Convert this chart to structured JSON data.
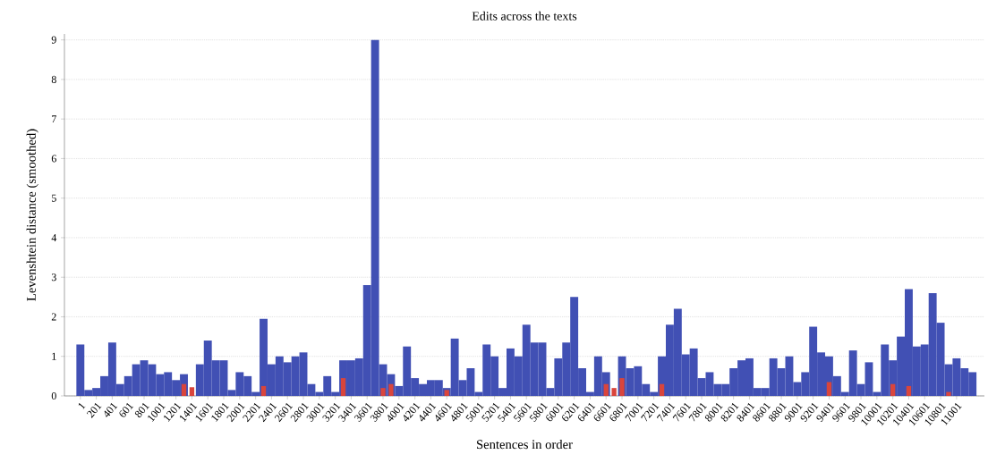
{
  "chart_data": {
    "type": "bar",
    "title": "Edits across the texts",
    "xlabel": "Sentences in order",
    "ylabel": "Levenshtein distance (smoothed)",
    "ylim": [
      0,
      9.15
    ],
    "yticks": [
      0,
      1,
      2,
      3,
      4,
      5,
      6,
      7,
      8,
      9
    ],
    "grid": "y",
    "categories": [
      "1",
      null,
      "201",
      null,
      "401",
      null,
      "601",
      null,
      "801",
      null,
      "1001",
      null,
      "1201",
      null,
      "1401",
      null,
      "1601",
      null,
      "1801",
      null,
      "2001",
      null,
      "2201",
      null,
      "2401",
      null,
      "2601",
      null,
      "2801",
      null,
      "3001",
      null,
      "3201",
      null,
      "3401",
      null,
      "3601",
      null,
      "3801",
      null,
      "4001",
      null,
      "4201",
      null,
      "4401",
      null,
      "4601",
      null,
      "4801",
      null,
      "5001",
      null,
      "5201",
      null,
      "5401",
      null,
      "5601",
      null,
      "5801",
      null,
      "6001",
      null,
      "6201",
      null,
      "6401",
      null,
      "6601",
      null,
      "6801",
      null,
      "7001",
      null,
      "7201",
      null,
      "7401",
      null,
      "7601",
      null,
      "7801",
      null,
      "8001",
      null,
      "8201",
      null,
      "8401",
      null,
      "8601",
      null,
      "8801",
      null,
      "9001",
      null,
      "9201",
      null,
      "9401",
      null,
      "9601",
      null,
      "9801",
      null,
      "10001",
      null,
      "10201",
      null,
      "10401",
      null,
      "10601",
      null,
      "10801",
      null,
      "11001",
      null,
      null
    ],
    "series": [
      {
        "color": "#4150b4",
        "values": [
          1.3,
          0.15,
          0.2,
          0.5,
          1.35,
          0.3,
          0.5,
          0.8,
          0.9,
          0.8,
          0.55,
          0.6,
          0.4,
          0.55,
          null,
          0.8,
          1.4,
          0.9,
          0.9,
          0.15,
          0.6,
          0.5,
          0.1,
          1.95,
          0.8,
          1.0,
          0.85,
          1.0,
          1.1,
          0.3,
          0.1,
          0.5,
          0.1,
          0.9,
          0.9,
          0.95,
          2.8,
          9.0,
          0.8,
          0.55,
          0.25,
          1.25,
          0.45,
          0.3,
          0.4,
          0.4,
          0.2,
          1.45,
          0.4,
          0.7,
          0.1,
          1.3,
          1.0,
          0.2,
          1.2,
          1.0,
          1.8,
          1.35,
          1.35,
          0.2,
          0.95,
          1.35,
          2.5,
          0.7,
          0.1,
          1.0,
          0.6,
          null,
          1.0,
          0.7,
          0.75,
          0.3,
          0.1,
          1.0,
          1.8,
          2.2,
          1.05,
          1.2,
          0.45,
          0.6,
          0.3,
          0.3,
          0.7,
          0.9,
          0.95,
          0.2,
          0.2,
          0.95,
          0.7,
          1.0,
          0.35,
          0.6,
          1.75,
          1.1,
          1.0,
          0.5,
          0.1,
          1.15,
          0.3,
          0.85,
          0.1,
          1.3,
          0.9,
          1.5,
          2.7,
          1.25,
          1.3,
          2.6,
          1.85,
          0.8,
          0.95,
          0.7,
          0.6
        ]
      },
      {
        "color": "#d9453c",
        "values": [
          null,
          null,
          null,
          null,
          null,
          null,
          null,
          null,
          null,
          null,
          null,
          null,
          null,
          0.3,
          0.22,
          null,
          null,
          null,
          null,
          null,
          null,
          null,
          null,
          0.25,
          null,
          null,
          null,
          null,
          null,
          null,
          null,
          null,
          null,
          0.45,
          null,
          null,
          null,
          null,
          0.2,
          0.3,
          null,
          null,
          null,
          null,
          null,
          null,
          0.15,
          null,
          null,
          null,
          null,
          null,
          null,
          null,
          null,
          null,
          null,
          null,
          null,
          null,
          null,
          null,
          null,
          null,
          null,
          null,
          0.3,
          0.2,
          0.45,
          null,
          null,
          null,
          null,
          0.3,
          null,
          null,
          null,
          null,
          null,
          null,
          null,
          null,
          null,
          null,
          null,
          null,
          null,
          null,
          null,
          null,
          null,
          null,
          null,
          null,
          0.35,
          null,
          null,
          null,
          null,
          null,
          null,
          null,
          0.3,
          null,
          0.25,
          null,
          null,
          null,
          null,
          0.1,
          null,
          null,
          null
        ]
      }
    ]
  }
}
